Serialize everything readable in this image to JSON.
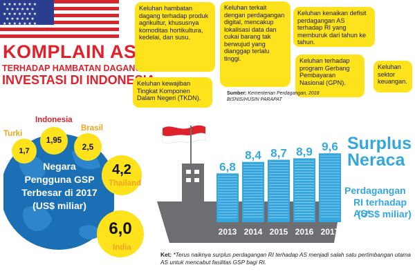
{
  "header": {
    "title_main": "KOMPLAIN AS",
    "title_sub1": "TERHADAP HAMBATAN DAGANG &",
    "title_sub2": "INVESTASI DI INDONESIA"
  },
  "complaints": [
    {
      "text": "Keluhan hambatan dagang terhadap produk agrikultur, khususnya komoditas hortikultura, kedelai, dan susu."
    },
    {
      "text": "Keluhan terkait dengan perdagangan digital, mencakup lokalisasi data dan cukai barang tak berwujud yang dianggap terlalu tinggi."
    },
    {
      "text": "Keluhan kenaikan defisit perdagangan AS terhadap RI yang memburuk dari tahun ke tahun."
    },
    {
      "text": "Keluhan kewajiban Tingkat Komponen Dalam Negeri (TKDN)."
    },
    {
      "text": "Keluhan terhadap program Gerbang Pembayaran Nasional (GPN)."
    },
    {
      "text": "Keluhan sektor keuangan."
    }
  ],
  "source": {
    "label": "Sumber:",
    "name": "Kementerian Perdagangan, 2018",
    "credit": "BISNIS/HUSIN PARAPAT"
  },
  "gsp": {
    "title_lines": [
      "Negara",
      "Pengguna GSP",
      "Terbesar di 2017",
      "(US$ miliar)"
    ],
    "countries": [
      {
        "name": "Turki",
        "value": "1,7"
      },
      {
        "name": "Indonesia",
        "value": "1,95"
      },
      {
        "name": "Brasil",
        "value": "2,5"
      },
      {
        "name": "Thailand",
        "value": "4,2"
      },
      {
        "name": "India",
        "value": "6,0"
      }
    ]
  },
  "surplus": {
    "title1": "Surplus",
    "title2": "Neraca",
    "sub1": "Perdagangan",
    "sub2": "RI terhadap AS*",
    "unit": "(US$ miliar)"
  },
  "chart_data": {
    "type": "bar",
    "categories": [
      "2013",
      "2014",
      "2015",
      "2016",
      "2017"
    ],
    "values": [
      6.8,
      8.4,
      8.7,
      8.9,
      9.6
    ],
    "value_labels": [
      "6,8",
      "8,4",
      "8,7",
      "8,9",
      "9,6"
    ],
    "title": "Surplus Neraca Perdagangan RI terhadap AS* (US$ miliar)",
    "colors": {
      "bars": "#35a7de",
      "labels": "#35a7de",
      "ship": "#6d6e71",
      "years": "#ffffff"
    }
  },
  "note": {
    "label": "Ket:",
    "text": "*Terus naiknya surplus perdagangan RI terhadap AS menjadi salah satu pertimbangan utama AS untuk mencabut fasilitas GSP bagi RI."
  },
  "icons": [
    "us-flag-icon",
    "indonesia-flag-icon",
    "globe-icon",
    "ship-icon"
  ],
  "colors": {
    "accent_red": "#e0212b",
    "accent_yellow": "#fde21c",
    "accent_blue": "#35a7de",
    "globe_blue": "#1a6fb5",
    "ship_gray": "#6d6e71"
  }
}
